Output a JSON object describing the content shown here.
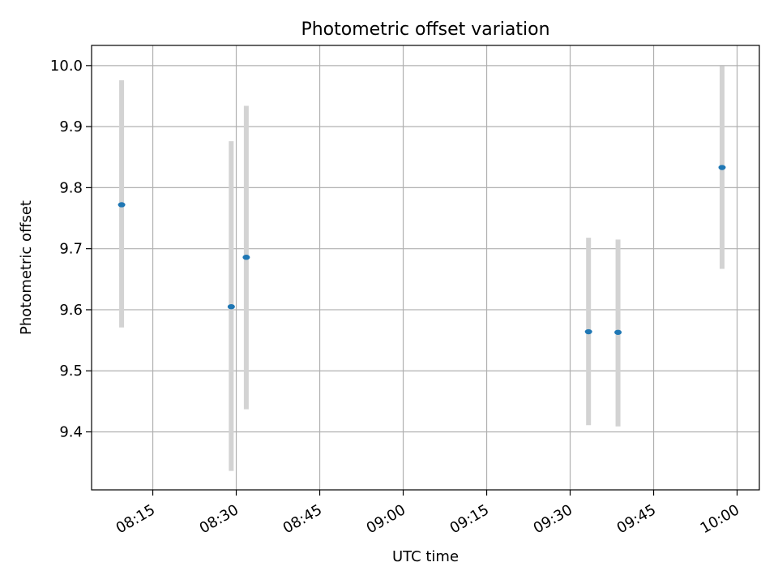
{
  "chart_data": {
    "type": "scatter",
    "title": "Photometric offset variation",
    "xlabel": "UTC time",
    "ylabel": "Photometric offset",
    "x_axis_kind": "time",
    "xlim": [
      "08:04",
      "10:04"
    ],
    "ylim": [
      9.305,
      10.033
    ],
    "x_ticks": [
      "08:15",
      "08:30",
      "08:45",
      "09:00",
      "09:15",
      "09:30",
      "09:45",
      "10:00"
    ],
    "y_ticks": [
      9.4,
      9.5,
      9.6,
      9.7,
      9.8,
      9.9,
      10.0
    ],
    "y_tick_labels": [
      "9.4",
      "9.5",
      "9.6",
      "9.7",
      "9.8",
      "9.9",
      "10.0"
    ],
    "grid": true,
    "points": [
      {
        "time": "08:09.4",
        "y": 9.772,
        "y_low": 9.571,
        "y_high": 9.976
      },
      {
        "time": "08:29.1",
        "y": 9.605,
        "y_low": 9.336,
        "y_high": 9.876
      },
      {
        "time": "08:31.8",
        "y": 9.686,
        "y_low": 9.437,
        "y_high": 9.934
      },
      {
        "time": "09:33.3",
        "y": 9.564,
        "y_low": 9.411,
        "y_high": 9.718
      },
      {
        "time": "09:38.6",
        "y": 9.563,
        "y_low": 9.409,
        "y_high": 9.715
      },
      {
        "time": "09:57.3",
        "y": 9.833,
        "y_low": 9.667,
        "y_high": 9.999
      }
    ],
    "colors": {
      "marker": "#1f77b4",
      "errorbar": "#d3d3d3",
      "grid": "#b0b0b0",
      "axes": "#000000"
    }
  }
}
